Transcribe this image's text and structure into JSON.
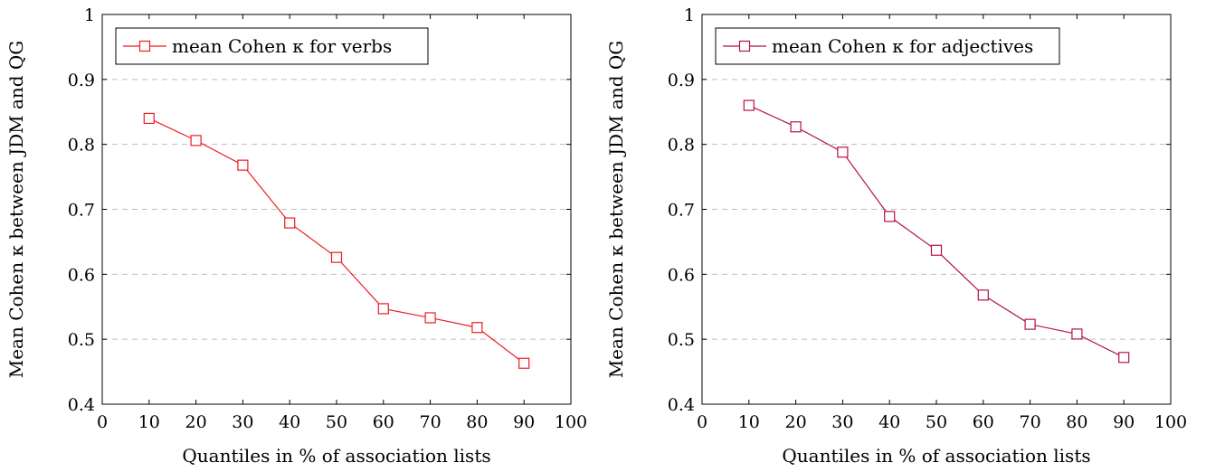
{
  "chart_data": [
    {
      "type": "line",
      "xlabel": "Quantiles in % of association lists",
      "ylabel": "Mean Cohen κ between JDM and QG",
      "xlim": [
        0,
        100
      ],
      "ylim": [
        0.4,
        1
      ],
      "xticks": [
        "0",
        "10",
        "20",
        "30",
        "40",
        "50",
        "60",
        "70",
        "80",
        "90",
        "100"
      ],
      "yticks": [
        "0.4",
        "0.5",
        "0.6",
        "0.7",
        "0.8",
        "0.9",
        "1"
      ],
      "grid": "horizontal dashed",
      "legend_position": "top-left",
      "series": [
        {
          "name": "mean Cohen κ for verbs",
          "color": "#ee1c25",
          "marker": "square",
          "x": [
            10,
            20,
            30,
            40,
            50,
            60,
            70,
            80,
            90
          ],
          "y": [
            0.84,
            0.806,
            0.768,
            0.679,
            0.626,
            0.547,
            0.533,
            0.518,
            0.463
          ]
        }
      ]
    },
    {
      "type": "line",
      "xlabel": "Quantiles in % of association lists",
      "ylabel": "Mean Cohen κ between JDM and QG",
      "xlim": [
        0,
        100
      ],
      "ylim": [
        0.4,
        1
      ],
      "xticks": [
        "0",
        "10",
        "20",
        "30",
        "40",
        "50",
        "60",
        "70",
        "80",
        "90",
        "100"
      ],
      "yticks": [
        "0.4",
        "0.5",
        "0.6",
        "0.7",
        "0.8",
        "0.9",
        "1"
      ],
      "grid": "horizontal dashed",
      "legend_position": "top-left",
      "series": [
        {
          "name": "mean Cohen κ for adjectives",
          "color": "#b5124e",
          "marker": "square",
          "x": [
            10,
            20,
            30,
            40,
            50,
            60,
            70,
            80,
            90
          ],
          "y": [
            0.86,
            0.827,
            0.788,
            0.689,
            0.637,
            0.568,
            0.523,
            0.508,
            0.472
          ]
        }
      ]
    }
  ]
}
